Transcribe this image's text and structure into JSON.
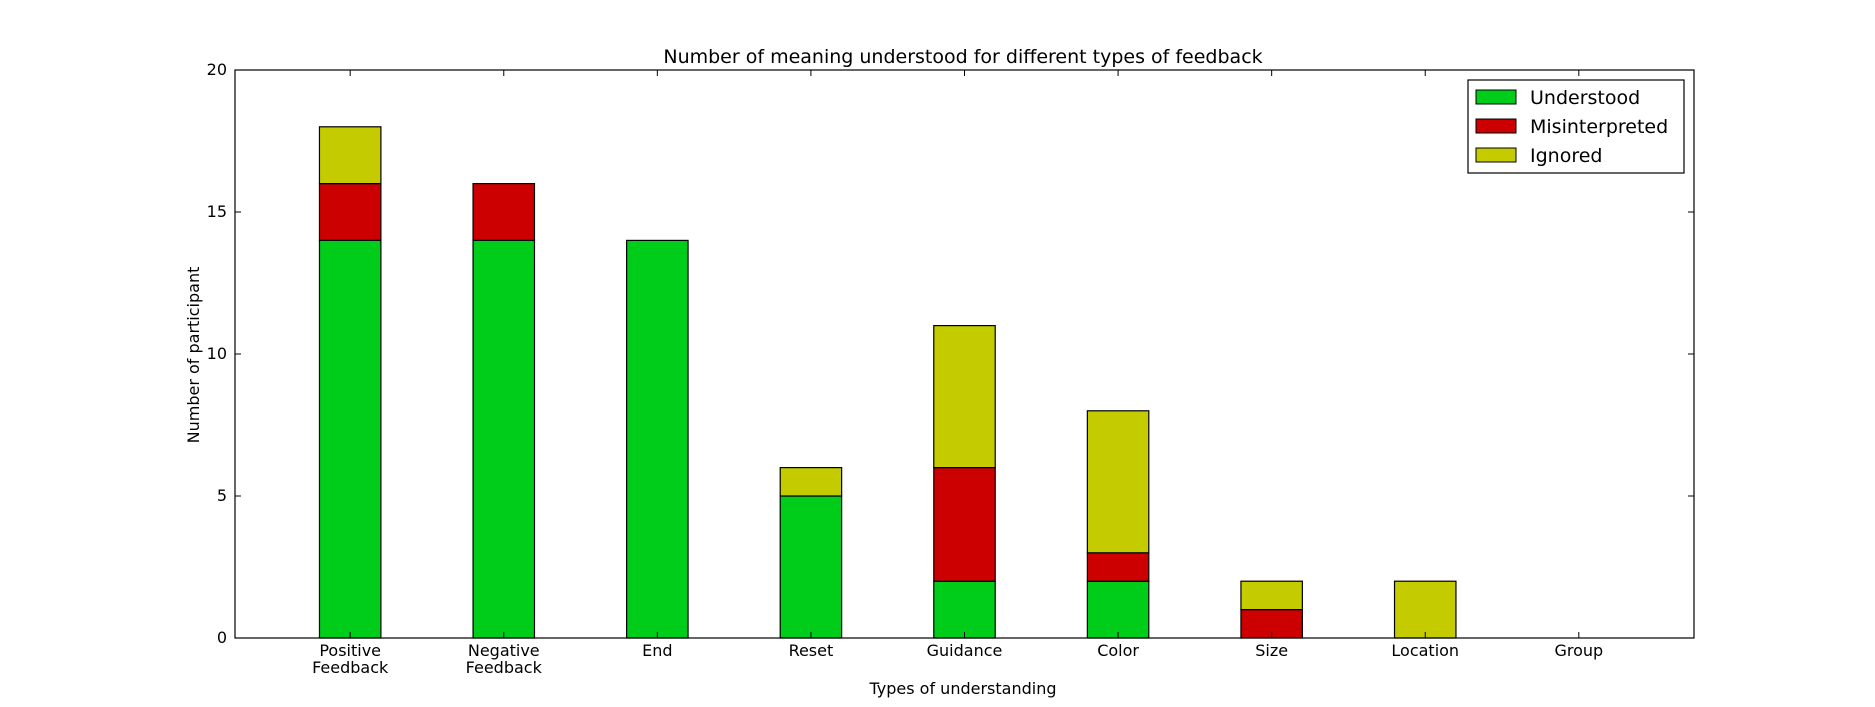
{
  "chart_data": {
    "type": "bar",
    "stacked": true,
    "title": "Number of meaning understood for different types of feedback",
    "xlabel": "Types of understanding",
    "ylabel": "Number of participant",
    "categories": [
      [
        "Positive",
        "Feedback"
      ],
      [
        "Negative",
        "Feedback"
      ],
      [
        "End"
      ],
      [
        "Reset"
      ],
      [
        "Guidance"
      ],
      [
        "Color"
      ],
      [
        "Size"
      ],
      [
        "Location"
      ],
      [
        "Group"
      ]
    ],
    "series": [
      {
        "name": "Understood",
        "color": "#00cc1a",
        "values": [
          14,
          14,
          14,
          5,
          2,
          2,
          0,
          0,
          0
        ]
      },
      {
        "name": "Misinterpreted",
        "color": "#cc0000",
        "values": [
          2,
          2,
          0,
          0,
          4,
          1,
          1,
          0,
          0
        ]
      },
      {
        "name": "Ignored",
        "color": "#c4cc00",
        "values": [
          2,
          0,
          0,
          1,
          5,
          5,
          1,
          2,
          0
        ]
      }
    ],
    "ylim": [
      0,
      20
    ],
    "yticks": [
      "0",
      "5",
      "10",
      "15",
      "20"
    ],
    "grid": false,
    "legend_position": "top-right"
  }
}
